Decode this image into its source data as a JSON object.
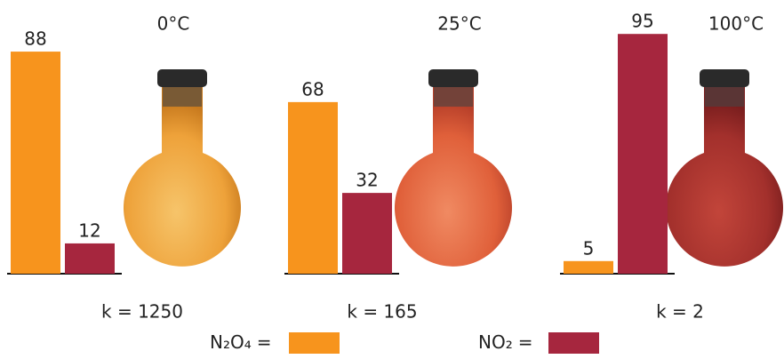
{
  "chart_data": [
    {
      "type": "bar",
      "title": "0°C",
      "annotation": "k = 1250",
      "series": [
        {
          "name": "N₂O₄",
          "color": "#f7941d",
          "values": [
            88
          ]
        },
        {
          "name": "NO₂",
          "color": "#a6263e",
          "values": [
            12
          ]
        }
      ]
    },
    {
      "type": "bar",
      "title": "25°C",
      "annotation": "k = 165",
      "series": [
        {
          "name": "N₂O₄",
          "color": "#f7941d",
          "values": [
            68
          ]
        },
        {
          "name": "NO₂",
          "color": "#a6263e",
          "values": [
            32
          ]
        }
      ]
    },
    {
      "type": "bar",
      "title": "100°C",
      "annotation": "k = 2",
      "series": [
        {
          "name": "N₂O₄",
          "color": "#f7941d",
          "values": [
            5
          ]
        },
        {
          "name": "NO₂",
          "color": "#a6263e",
          "values": [
            95
          ]
        }
      ]
    }
  ],
  "legend_separator": "="
}
